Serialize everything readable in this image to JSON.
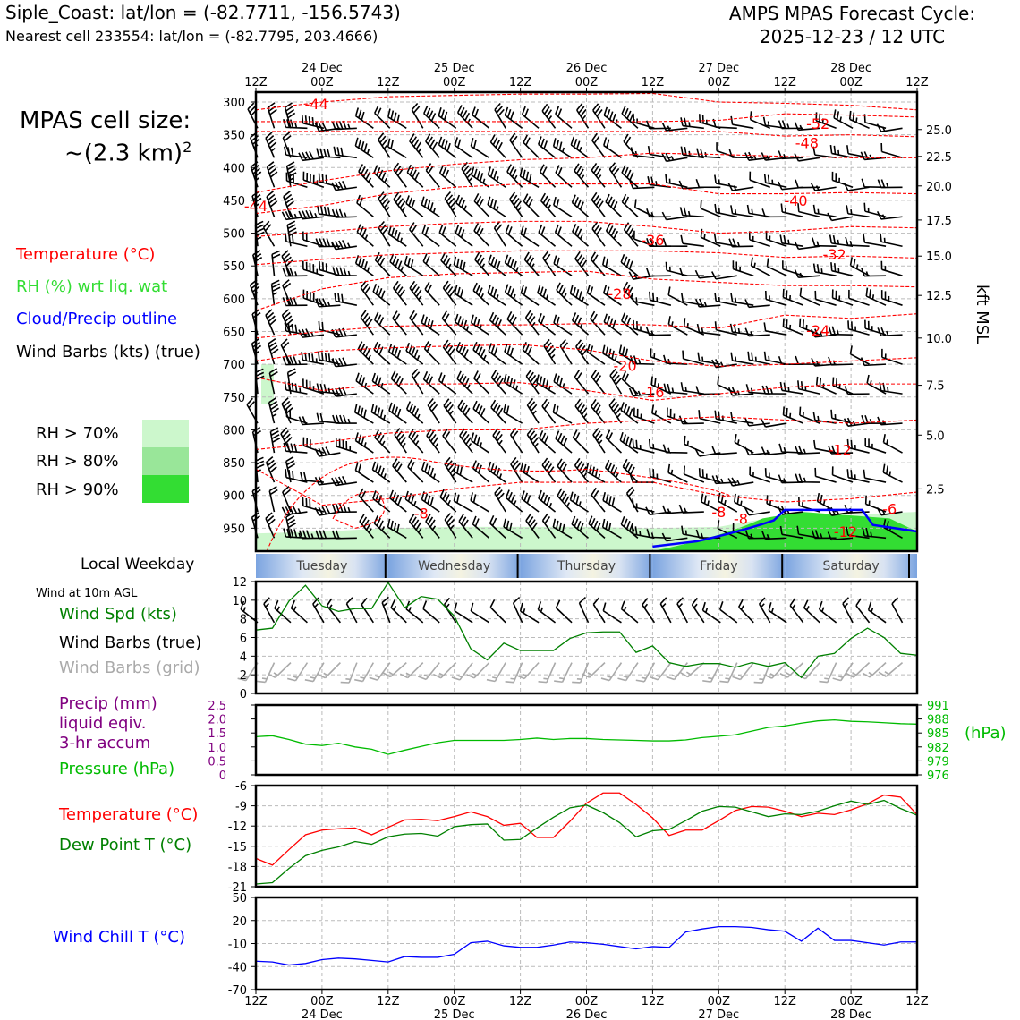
{
  "header": {
    "location_line": "Siple_Coast: lat/lon = (-82.7711, -156.5743)",
    "nearest_cell_line": "Nearest cell 233554: lat/lon = (-82.7795, 203.4666)",
    "cycle_title": "AMPS MPAS Forecast Cycle:",
    "cycle_time": "2025-12-23 / 12 UTC"
  },
  "side": {
    "cell_size_title": "MPAS cell size:",
    "cell_size_value": "~(2.3 km)",
    "cell_size_exp": "2",
    "label_temperature": "Temperature (°C)",
    "label_rh": "RH (%) wrt liq. wat",
    "label_cloud": "Cloud/Precip outline",
    "label_barbs": "Wind Barbs (kts) (true)",
    "rh_70": "RH > 70%",
    "rh_80": "RH > 80%",
    "rh_90": "RH > 90%",
    "local_weekday": "Local Weekday",
    "wind_at": "Wind at 10m AGL",
    "wind_spd": "Wind Spd (kts)",
    "wind_barbs_true": "Wind Barbs (true)",
    "wind_barbs_grid": "Wind Barbs (grid)",
    "precip_1": "Precip (mm)",
    "precip_2": "liquid eqiv.",
    "precip_3": "3-hr accum",
    "pressure": "Pressure (hPa)",
    "temp": "Temperature (°C)",
    "dewpoint": "Dew Point T (°C)",
    "windchill": "Wind Chill T (°C)",
    "hpa_unit": "(hPa)",
    "kft": "kft MSL"
  },
  "colors": {
    "temperature": "#ff0000",
    "rh": "#33dd33",
    "cloud": "#0000ff",
    "rh70": "#ccf7cc",
    "rh80": "#99e699",
    "rh90": "#33dd33",
    "wind_spd": "#008000",
    "grid_barbs": "#aaaaaa",
    "precip": "#800080",
    "pressure": "#00bb00",
    "dewpoint": "#008000",
    "windchill": "#0000ff"
  },
  "time_axis": {
    "tick_labels": [
      "12Z",
      "00Z",
      "12Z",
      "00Z",
      "12Z",
      "00Z",
      "12Z",
      "00Z",
      "12Z",
      "00Z",
      "12Z"
    ],
    "date_labels": [
      "24 Dec",
      "25 Dec",
      "26 Dec",
      "27 Dec",
      "28 Dec"
    ],
    "weekdays": [
      "Tuesday",
      "Wednesday",
      "Thursday",
      "Friday",
      "Saturday"
    ]
  },
  "chart_data": [
    {
      "type": "contour",
      "name": "cross-section",
      "pressure_ticks": [
        300,
        350,
        400,
        450,
        500,
        550,
        600,
        650,
        700,
        750,
        800,
        850,
        900,
        950
      ],
      "height_ticks": [
        "25.0",
        "22.5",
        "20.0",
        "17.5",
        "15.0",
        "12.5",
        "10.0",
        "7.5",
        "5.0",
        "2.5"
      ],
      "height_values": [
        25.0,
        22.5,
        20.0,
        17.5,
        15.0,
        12.5,
        10.0,
        7.5,
        5.0,
        2.5
      ],
      "height_pressures": [
        342,
        383,
        428,
        480,
        535,
        595,
        660,
        732,
        808,
        890
      ],
      "temperature_contour_labels": [
        "-44",
        "-52",
        "-48",
        "-44",
        "-40",
        "-36",
        "-32",
        "-28",
        "-24",
        "-20",
        "-16",
        "-12",
        "-8",
        "-8",
        "-6",
        "-8",
        "-12"
      ],
      "temperature_contours": [
        {
          "label": "-44",
          "p": [
            312,
            300,
            292,
            290,
            288,
            288,
            287,
            300,
            302,
            305,
            312
          ]
        },
        {
          "label": "-52",
          "p": [
            330,
            330,
            330,
            330,
            330,
            330,
            330,
            328,
            318,
            320,
            323
          ]
        },
        {
          "label": "-48",
          "p": [
            345,
            345,
            345,
            345,
            345,
            345,
            345,
            345,
            352,
            350,
            353
          ]
        },
        {
          "label": "-44",
          "p": [
            438,
            420,
            405,
            395,
            388,
            385,
            378,
            380,
            383,
            385,
            385
          ]
        },
        {
          "label": "-40",
          "p": [
            470,
            458,
            440,
            430,
            425,
            425,
            425,
            440,
            440,
            438,
            440
          ]
        },
        {
          "label": "-36",
          "p": [
            505,
            498,
            490,
            485,
            482,
            482,
            490,
            500,
            497,
            490,
            492
          ]
        },
        {
          "label": "-32",
          "p": [
            548,
            540,
            533,
            530,
            527,
            527,
            527,
            530,
            537,
            535,
            538
          ]
        },
        {
          "label": "-28",
          "p": [
            618,
            585,
            568,
            562,
            560,
            558,
            570,
            575,
            580,
            580,
            582
          ]
        },
        {
          "label": "-24",
          "p": [
            660,
            650,
            642,
            640,
            640,
            638,
            640,
            645,
            625,
            630,
            623
          ]
        },
        {
          "label": "-20",
          "p": [
            695,
            680,
            675,
            672,
            670,
            678,
            695,
            703,
            700,
            695,
            690
          ]
        },
        {
          "label": "-16",
          "p": [
            720,
            740,
            730,
            730,
            728,
            740,
            755,
            745,
            735,
            730,
            730
          ]
        },
        {
          "label": "-12",
          "p": [
            830,
            820,
            805,
            800,
            800,
            790,
            785,
            780,
            785,
            790,
            785
          ]
        },
        {
          "label": "-8",
          "p": [
            860,
            915,
            905,
            890,
            880,
            880,
            880,
            900,
            910,
            905,
            895
          ]
        }
      ],
      "rh_green_mask": [
        958,
        955,
        950,
        948,
        948,
        948,
        950,
        948,
        930,
        930,
        925
      ],
      "cloud_outline": [
        985,
        985,
        985,
        985,
        985,
        985,
        958,
        950,
        905,
        905,
        925
      ]
    },
    {
      "type": "line",
      "name": "Wind Spd (kts)",
      "yticks": [
        0,
        2,
        4,
        6,
        8,
        10,
        12
      ],
      "ylim": [
        0,
        12
      ],
      "x_hours": [
        0,
        3,
        6,
        9,
        12,
        15,
        18,
        21,
        24,
        27,
        30,
        33,
        36,
        39,
        42,
        45,
        48,
        51,
        54,
        57,
        60,
        63,
        66,
        69,
        72,
        75,
        78,
        81,
        84,
        87,
        90,
        93,
        96,
        99,
        102,
        105,
        108,
        111,
        114,
        117,
        120
      ],
      "values": [
        6.8,
        7,
        9.9,
        11.6,
        9.4,
        8.8,
        9.1,
        9.1,
        11.9,
        9.2,
        10.4,
        10.1,
        8.3,
        4.8,
        3.6,
        5.4,
        4.6,
        4.6,
        4.6,
        5.9,
        6.5,
        6.6,
        6.6,
        4.4,
        5.1,
        3.3,
        2.9,
        3.2,
        3.2,
        2.8,
        3.3,
        2.9,
        3.3,
        1.7,
        4.0,
        4.3,
        5.9,
        7.0,
        6.0,
        4.3,
        4.1
      ]
    },
    {
      "type": "line",
      "name": "Pressure (hPa)",
      "precip_yticks": [
        "0",
        "0.5",
        "1.0",
        "1.5",
        "2.0",
        "2.5"
      ],
      "pressure_yticks": [
        "976",
        "979",
        "982",
        "985",
        "988",
        "991"
      ],
      "ylim": [
        976,
        991
      ],
      "x_hours": [
        0,
        3,
        6,
        9,
        12,
        15,
        18,
        21,
        24,
        27,
        30,
        33,
        36,
        39,
        42,
        45,
        48,
        51,
        54,
        57,
        60,
        63,
        66,
        69,
        72,
        75,
        78,
        81,
        84,
        87,
        90,
        93,
        96,
        99,
        102,
        105,
        108,
        111,
        114,
        117,
        120
      ],
      "values": [
        984.2,
        984.4,
        983.6,
        982.6,
        982.3,
        982.8,
        982.0,
        981.5,
        980.4,
        981.3,
        982.1,
        982.9,
        983.4,
        983.4,
        983.4,
        983.4,
        983.6,
        983.9,
        983.6,
        983.8,
        983.8,
        983.6,
        983.5,
        983.4,
        983.3,
        983.3,
        983.5,
        984.0,
        984.3,
        984.6,
        985.4,
        986.2,
        986.5,
        987.1,
        987.6,
        987.8,
        987.5,
        987.4,
        987.2,
        987.0,
        986.9
      ],
      "precip_values": [
        0,
        0,
        0,
        0,
        0,
        0,
        0,
        0,
        0,
        0,
        0,
        0,
        0,
        0,
        0,
        0,
        0,
        0,
        0,
        0,
        0,
        0,
        0,
        0,
        0,
        0,
        0,
        0,
        0,
        0,
        0,
        0,
        0,
        0,
        0,
        0,
        0,
        0,
        0,
        0,
        0
      ]
    },
    {
      "type": "line",
      "name": "Temperature / Dew Point",
      "yticks": [
        -21,
        -18,
        -15,
        -12,
        -9,
        -6
      ],
      "ylim": [
        -21,
        -6
      ],
      "x_hours": [
        0,
        3,
        6,
        9,
        12,
        15,
        18,
        21,
        24,
        27,
        30,
        33,
        36,
        39,
        42,
        45,
        48,
        51,
        54,
        57,
        60,
        63,
        66,
        69,
        72,
        75,
        78,
        81,
        84,
        87,
        90,
        93,
        96,
        99,
        102,
        105,
        108,
        111,
        114,
        117,
        120
      ],
      "series": [
        {
          "name": "Temperature (°C)",
          "values": [
            -16.8,
            -17.8,
            -15.5,
            -13.3,
            -12.6,
            -12.4,
            -12.3,
            -13.3,
            -12.2,
            -11.1,
            -11.0,
            -11.2,
            -10.6,
            -9.9,
            -10.6,
            -11.9,
            -11.6,
            -13.7,
            -13.7,
            -11.3,
            -8.6,
            -7.1,
            -7.1,
            -8.8,
            -10.8,
            -13.4,
            -12.6,
            -12.6,
            -11.2,
            -9.7,
            -9.1,
            -9.2,
            -9.8,
            -10.6,
            -10.1,
            -10.3,
            -9.6,
            -8.7,
            -7.4,
            -7.7,
            -10.3
          ]
        },
        {
          "name": "Dew Point T (°C)",
          "values": [
            -20.6,
            -20.4,
            -18.3,
            -16.4,
            -15.6,
            -15.1,
            -14.3,
            -14.7,
            -13.6,
            -13.2,
            -13.1,
            -13.5,
            -12.1,
            -11.8,
            -11.7,
            -14.1,
            -14.0,
            -12.3,
            -10.7,
            -9.3,
            -8.9,
            -10.0,
            -11.5,
            -13.6,
            -12.7,
            -12.5,
            -11.2,
            -9.8,
            -9.1,
            -9.2,
            -9.9,
            -10.6,
            -10.2,
            -10.3,
            -9.8,
            -9.0,
            -8.3,
            -8.8,
            -8.2,
            -9.4,
            -10.4
          ]
        }
      ]
    },
    {
      "type": "line",
      "name": "Wind Chill T (°C)",
      "yticks": [
        -70,
        -40,
        -10,
        20,
        50
      ],
      "ylim": [
        -70,
        50
      ],
      "x_hours": [
        0,
        3,
        6,
        9,
        12,
        15,
        18,
        21,
        24,
        27,
        30,
        33,
        36,
        39,
        42,
        45,
        48,
        51,
        54,
        57,
        60,
        63,
        66,
        69,
        72,
        75,
        78,
        81,
        84,
        87,
        90,
        93,
        96,
        99,
        102,
        105,
        108,
        111,
        114,
        117,
        120
      ],
      "values": [
        -33,
        -34,
        -38,
        -36,
        -31,
        -29,
        -30,
        -32,
        -34,
        -27,
        -28,
        -28,
        -24,
        -9,
        -7,
        -13,
        -15,
        -15,
        -12,
        -8,
        -9,
        -11,
        -14,
        -17,
        -14,
        -15,
        5,
        9,
        12,
        12,
        11,
        8,
        6,
        -7,
        10,
        -6,
        -6,
        -9,
        -12,
        -8,
        -8
      ]
    }
  ]
}
